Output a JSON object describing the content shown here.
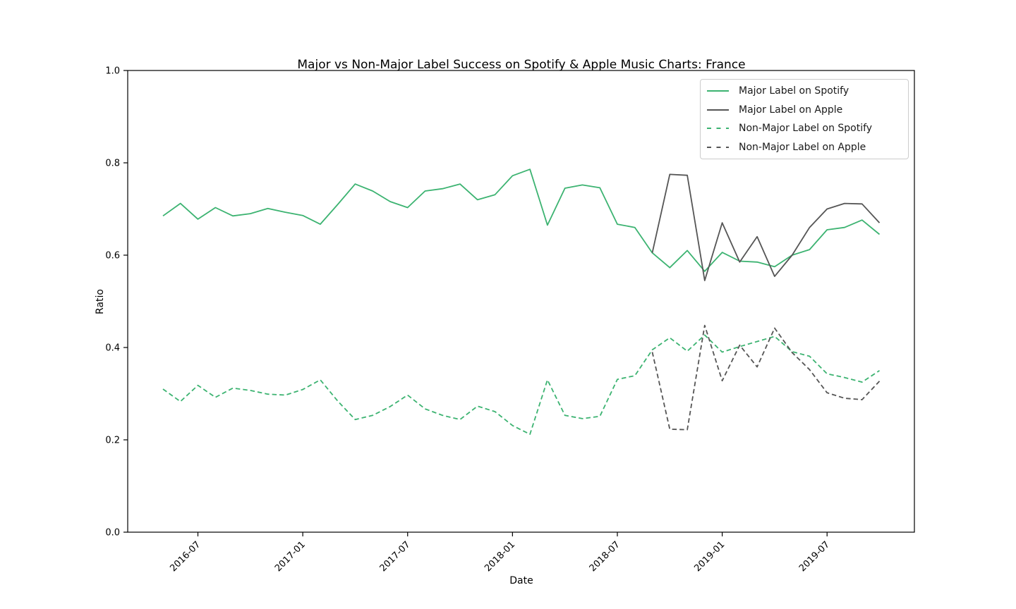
{
  "figure": {
    "title": "Major vs Non-Major Label Success on Spotify & Apple Music Charts: France",
    "xlabel": "Date",
    "ylabel": "Ratio"
  },
  "legend": {
    "items": [
      {
        "label": "Major Label on Spotify",
        "color": "#3cb371",
        "dash": false
      },
      {
        "label": "Major Label on Apple",
        "color": "#555555",
        "dash": false
      },
      {
        "label": "Non-Major Label on Spotify",
        "color": "#3cb371",
        "dash": true
      },
      {
        "label": "Non-Major Label on Apple",
        "color": "#555555",
        "dash": true
      }
    ]
  },
  "chart_data": {
    "type": "line",
    "title": "Major vs Non-Major Label Success on Spotify & Apple Music Charts: France",
    "xlabel": "Date",
    "ylabel": "Ratio",
    "ylim": [
      0.0,
      1.0
    ],
    "yticks": [
      0.0,
      0.2,
      0.4,
      0.6,
      0.8,
      1.0
    ],
    "xticks": [
      "2016-07",
      "2017-01",
      "2017-07",
      "2018-01",
      "2018-07",
      "2019-01",
      "2019-07"
    ],
    "x_tick_rotation_deg": 45,
    "grid": false,
    "legend_position": "upper right",
    "colors": {
      "spotify_green": "#3cb371",
      "apple_gray": "#555555"
    },
    "series": [
      {
        "id": "major-spotify",
        "name": "Major Label on Spotify",
        "color": "#3cb371",
        "line_style": "solid",
        "x": [
          "2016-05",
          "2016-06",
          "2016-07",
          "2016-08",
          "2016-09",
          "2016-10",
          "2016-11",
          "2016-12",
          "2017-01",
          "2017-02",
          "2017-03",
          "2017-04",
          "2017-05",
          "2017-06",
          "2017-07",
          "2017-08",
          "2017-09",
          "2017-10",
          "2017-11",
          "2017-12",
          "2018-01",
          "2018-02",
          "2018-03",
          "2018-04",
          "2018-05",
          "2018-06",
          "2018-07",
          "2018-08",
          "2018-09",
          "2018-10",
          "2018-11",
          "2018-12",
          "2019-01",
          "2019-02",
          "2019-03",
          "2019-04",
          "2019-05",
          "2019-06",
          "2019-07",
          "2019-08",
          "2019-09",
          "2019-10"
        ],
        "values": [
          0.685,
          0.712,
          0.678,
          0.703,
          0.685,
          0.69,
          0.701,
          0.693,
          0.686,
          0.667,
          0.71,
          0.754,
          0.739,
          0.716,
          0.703,
          0.739,
          0.744,
          0.754,
          0.72,
          0.731,
          0.772,
          0.786,
          0.665,
          0.745,
          0.752,
          0.746,
          0.667,
          0.66,
          0.605,
          0.573,
          0.61,
          0.565,
          0.606,
          0.587,
          0.585,
          0.575,
          0.6,
          0.612,
          0.655,
          0.66,
          0.676,
          0.645
        ]
      },
      {
        "id": "major-apple",
        "name": "Major Label on Apple",
        "color": "#555555",
        "line_style": "solid",
        "x": [
          "2018-09",
          "2018-10",
          "2018-11",
          "2018-12",
          "2019-01",
          "2019-02",
          "2019-03",
          "2019-04",
          "2019-05",
          "2019-06",
          "2019-07",
          "2019-08",
          "2019-09",
          "2019-10"
        ],
        "values": [
          0.605,
          0.775,
          0.773,
          0.545,
          0.67,
          0.585,
          0.64,
          0.554,
          0.6,
          0.66,
          0.7,
          0.712,
          0.711,
          0.67
        ]
      },
      {
        "id": "nonmajor-spotify",
        "name": "Non-Major Label on Spotify",
        "color": "#3cb371",
        "line_style": "dashed",
        "x": [
          "2016-05",
          "2016-06",
          "2016-07",
          "2016-08",
          "2016-09",
          "2016-10",
          "2016-11",
          "2016-12",
          "2017-01",
          "2017-02",
          "2017-03",
          "2017-04",
          "2017-05",
          "2017-06",
          "2017-07",
          "2017-08",
          "2017-09",
          "2017-10",
          "2017-11",
          "2017-12",
          "2018-01",
          "2018-02",
          "2018-03",
          "2018-04",
          "2018-05",
          "2018-06",
          "2018-07",
          "2018-08",
          "2018-09",
          "2018-10",
          "2018-11",
          "2018-12",
          "2019-01",
          "2019-02",
          "2019-03",
          "2019-04",
          "2019-05",
          "2019-06",
          "2019-07",
          "2019-08",
          "2019-09",
          "2019-10"
        ],
        "values": [
          0.31,
          0.283,
          0.318,
          0.292,
          0.312,
          0.307,
          0.299,
          0.297,
          0.309,
          0.33,
          0.284,
          0.244,
          0.253,
          0.272,
          0.297,
          0.267,
          0.253,
          0.244,
          0.273,
          0.261,
          0.231,
          0.212,
          0.33,
          0.253,
          0.246,
          0.251,
          0.331,
          0.339,
          0.395,
          0.421,
          0.392,
          0.427,
          0.39,
          0.402,
          0.413,
          0.424,
          0.391,
          0.381,
          0.343,
          0.335,
          0.325,
          0.35
        ]
      },
      {
        "id": "nonmajor-apple",
        "name": "Non-Major Label on Apple",
        "color": "#555555",
        "line_style": "dashed",
        "x": [
          "2018-09",
          "2018-10",
          "2018-11",
          "2018-12",
          "2019-01",
          "2019-02",
          "2019-03",
          "2019-04",
          "2019-05",
          "2019-06",
          "2019-07",
          "2019-08",
          "2019-09",
          "2019-10"
        ],
        "values": [
          0.39,
          0.223,
          0.222,
          0.448,
          0.328,
          0.405,
          0.358,
          0.442,
          0.389,
          0.352,
          0.302,
          0.29,
          0.287,
          0.327
        ]
      }
    ]
  }
}
